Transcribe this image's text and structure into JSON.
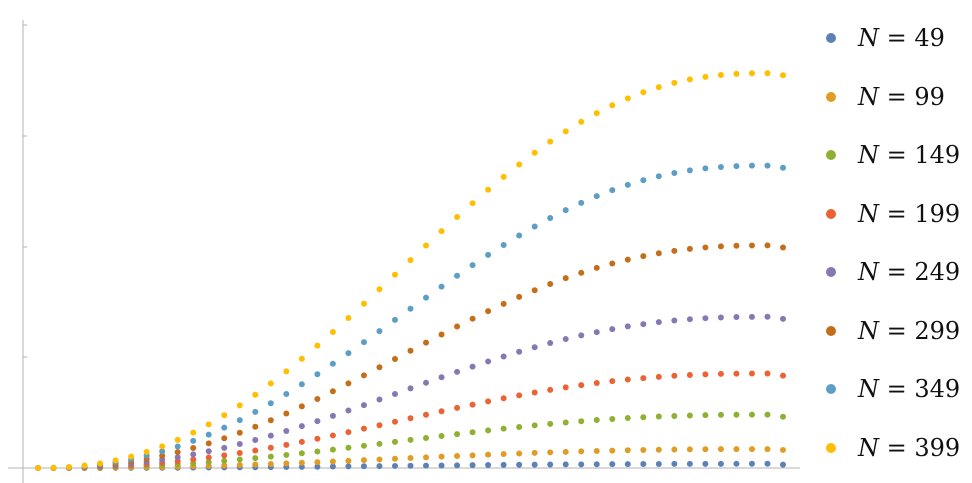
{
  "chart_data": {
    "type": "scatter",
    "title": "",
    "xlabel": "",
    "ylabel": "",
    "x_range": [
      0,
      48
    ],
    "y_range": [
      0,
      1
    ],
    "x": [
      0,
      1,
      2,
      3,
      4,
      5,
      6,
      7,
      8,
      9,
      10,
      11,
      12,
      13,
      14,
      15,
      16,
      17,
      18,
      19,
      20,
      21,
      22,
      23,
      24,
      25,
      26,
      27,
      28,
      29,
      30,
      31,
      32,
      33,
      34,
      35,
      36,
      37,
      38,
      39,
      40,
      41,
      42,
      43,
      44,
      45,
      46,
      47,
      48
    ],
    "shape": "smoothstep",
    "series": [
      {
        "name": "N = 49",
        "var": "N",
        "eq": " = 49",
        "color": "#5E81B5",
        "max": 0.01,
        "final": 0.008
      },
      {
        "name": "N = 99",
        "var": "N",
        "eq": " = 99",
        "color": "#E19C24",
        "max": 0.045,
        "final": 0.043
      },
      {
        "name": "N = 149",
        "var": "N",
        "eq": " = 149",
        "color": "#8FB032",
        "max": 0.127,
        "final": 0.122
      },
      {
        "name": "N = 199",
        "var": "N",
        "eq": " = 199",
        "color": "#EB6235",
        "max": 0.225,
        "final": 0.22
      },
      {
        "name": "N = 249",
        "var": "N",
        "eq": " = 249",
        "color": "#8778B3",
        "max": 0.36,
        "final": 0.355
      },
      {
        "name": "N = 299",
        "var": "N",
        "eq": " = 299",
        "color": "#C56E1A",
        "max": 0.53,
        "final": 0.525
      },
      {
        "name": "N = 349",
        "var": "N",
        "eq": " = 349",
        "color": "#5D9EC7",
        "max": 0.72,
        "final": 0.715
      },
      {
        "name": "N = 399",
        "var": "N",
        "eq": " = 399",
        "color": "#FFBF00",
        "max": 0.94,
        "final": 0.935
      }
    ],
    "legend_position": "right",
    "grid": false
  }
}
